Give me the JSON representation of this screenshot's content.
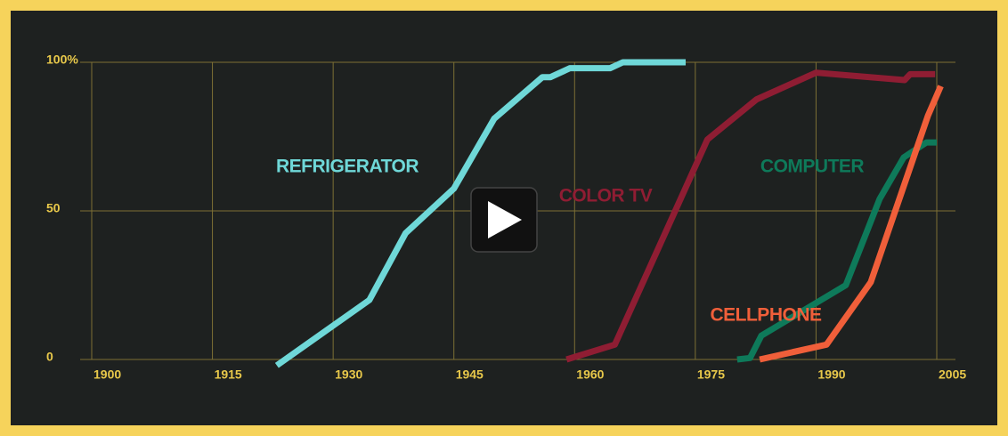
{
  "chart_data": {
    "type": "line",
    "xlim": [
      1900,
      2005
    ],
    "xticks": [
      1900,
      1915,
      1930,
      1945,
      1960,
      1975,
      1990,
      2005
    ],
    "ylim": [
      0,
      100
    ],
    "yticks": [
      0,
      50,
      {
        "value": 100,
        "label": "100%"
      }
    ],
    "grid": true,
    "series": [
      {
        "name": "REFRIGERATOR",
        "color": "#6fd8d8",
        "x": [
          1923,
          1934.5,
          1939,
          1945,
          1950,
          1956,
          1957,
          1959.4,
          1964.4,
          1966,
          1973.8
        ],
        "values": [
          -2,
          20,
          42.5,
          57.5,
          81,
          95,
          95,
          98,
          98,
          100,
          100
        ]
      },
      {
        "name": "COLOR TV",
        "color": "#8f1d33",
        "x": [
          1959,
          1965,
          1976.5,
          1982.6,
          1990,
          2001,
          2001.7,
          2004.8
        ],
        "values": [
          0,
          5,
          74,
          87.5,
          96.5,
          94,
          96,
          96
        ]
      },
      {
        "name": "COMPUTER",
        "color": "#0e7a5a",
        "x": [
          1980.2,
          1981.8,
          1983.2,
          1993.7,
          1997.9,
          2000.9,
          2003.7,
          2005
        ],
        "values": [
          0,
          0.5,
          8,
          25,
          54,
          68,
          73,
          73
        ]
      },
      {
        "name": "CELLPHONE",
        "color": "#f05f3a",
        "x": [
          1983,
          1991.3,
          1996.8,
          2003.9,
          2005.5
        ],
        "values": [
          0,
          5,
          26,
          82,
          92
        ]
      }
    ]
  }
}
